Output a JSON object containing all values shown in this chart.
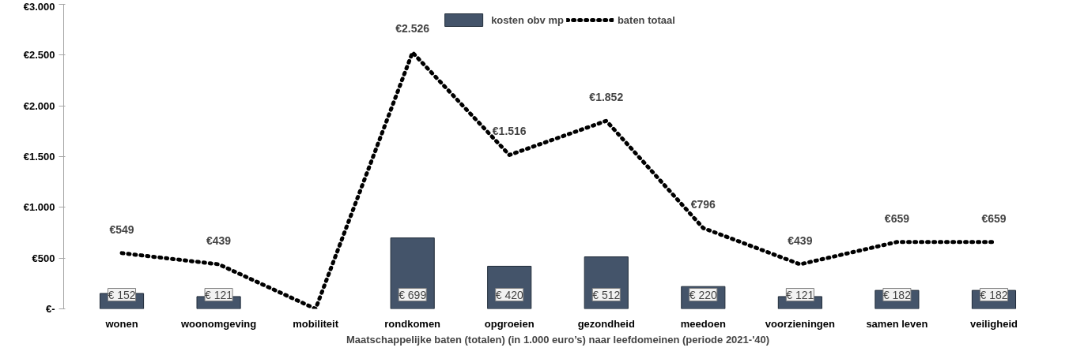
{
  "chart_data": {
    "type": "bar",
    "xlabel": "Maatschappelijke baten (totalen) (in 1.000 euro’s) naar leefdomeinen (periode 2021-'40)",
    "categories": [
      "wonen",
      "woonomgeving",
      "mobiliteit",
      "rondkomen",
      "opgroeien",
      "gezondheid",
      "meedoen",
      "voorzieningen",
      "samen leven",
      "veiligheid"
    ],
    "series": [
      {
        "name": "kosten obv mp",
        "color": "#44546a",
        "values": [
          152,
          121,
          null,
          699,
          420,
          512,
          220,
          121,
          182,
          182
        ],
        "value_labels": [
          "€ 152",
          "€ 121",
          null,
          "€ 699",
          "€ 420",
          "€ 512",
          "€ 220",
          "€ 121",
          "€ 182",
          "€ 182"
        ]
      },
      {
        "name": "baten totaal",
        "type": "line",
        "color": "#000000",
        "line_style": "dotted",
        "values": [
          549,
          439,
          0,
          2526,
          1516,
          1852,
          796,
          439,
          659,
          659
        ],
        "value_labels": [
          "€549",
          "€439",
          null,
          "€2.526",
          "€1.516",
          "€1.852",
          "€796",
          "€439",
          "€659",
          "€659"
        ]
      }
    ],
    "ylim": [
      0,
      3000
    ],
    "yticks": [
      {
        "value": 0,
        "label": "€-"
      },
      {
        "value": 500,
        "label": "€500"
      },
      {
        "value": 1000,
        "label": "€1.000"
      },
      {
        "value": 1500,
        "label": "€1.500"
      },
      {
        "value": 2000,
        "label": "€2.000"
      },
      {
        "value": 2500,
        "label": "€2.500"
      },
      {
        "value": 3000,
        "label": "€3.000"
      }
    ],
    "grid": false,
    "legend": "top"
  }
}
